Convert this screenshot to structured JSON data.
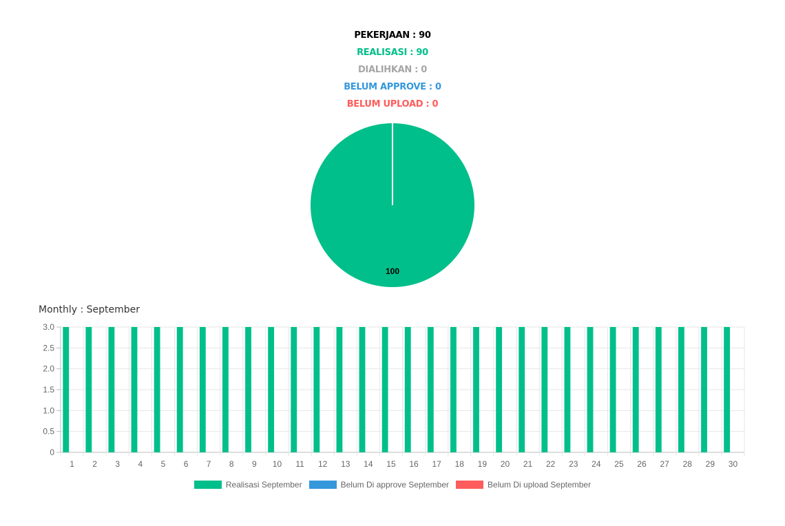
{
  "summary": {
    "pekerjaan": "PEKERJAAN : 90",
    "realisasi": "REALISASI : 90",
    "dialihkan": "DIALIHKAN : 0",
    "belum_approve": "BELUM APPROVE : 0",
    "belum_upload": "BELUM UPLOAD : 0"
  },
  "colors": {
    "green": "#00bf8a",
    "gray": "#a6a6a6",
    "blue": "#3498db",
    "red": "#ff5c5c",
    "text": "#000000"
  },
  "monthly_title": "Monthly : September",
  "chart_data": [
    {
      "type": "pie",
      "slices": [
        {
          "label": "Realisasi",
          "value": 100,
          "color": "#00bf8a"
        }
      ],
      "data_labels": [
        "100"
      ]
    },
    {
      "type": "bar",
      "categories": [
        "1",
        "2",
        "3",
        "4",
        "5",
        "6",
        "7",
        "8",
        "9",
        "10",
        "11",
        "12",
        "13",
        "14",
        "15",
        "16",
        "17",
        "18",
        "19",
        "20",
        "21",
        "22",
        "23",
        "24",
        "25",
        "26",
        "27",
        "28",
        "29",
        "30"
      ],
      "series": [
        {
          "name": "Realisasi September",
          "color": "#00bf8a",
          "values": [
            3,
            3,
            3,
            3,
            3,
            3,
            3,
            3,
            3,
            3,
            3,
            3,
            3,
            3,
            3,
            3,
            3,
            3,
            3,
            3,
            3,
            3,
            3,
            3,
            3,
            3,
            3,
            3,
            3,
            3
          ]
        },
        {
          "name": "Belum Di approve September",
          "color": "#3498db",
          "values": [
            0,
            0,
            0,
            0,
            0,
            0,
            0,
            0,
            0,
            0,
            0,
            0,
            0,
            0,
            0,
            0,
            0,
            0,
            0,
            0,
            0,
            0,
            0,
            0,
            0,
            0,
            0,
            0,
            0,
            0
          ]
        },
        {
          "name": "Belum Di upload September",
          "color": "#ff5c5c",
          "values": [
            0,
            0,
            0,
            0,
            0,
            0,
            0,
            0,
            0,
            0,
            0,
            0,
            0,
            0,
            0,
            0,
            0,
            0,
            0,
            0,
            0,
            0,
            0,
            0,
            0,
            0,
            0,
            0,
            0,
            0
          ]
        }
      ],
      "yticks": [
        "0",
        "0.5",
        "1.0",
        "1.5",
        "2.0",
        "2.5",
        "3.0"
      ],
      "ylim": [
        0,
        3
      ],
      "grid": true,
      "legend": "bottom"
    }
  ]
}
